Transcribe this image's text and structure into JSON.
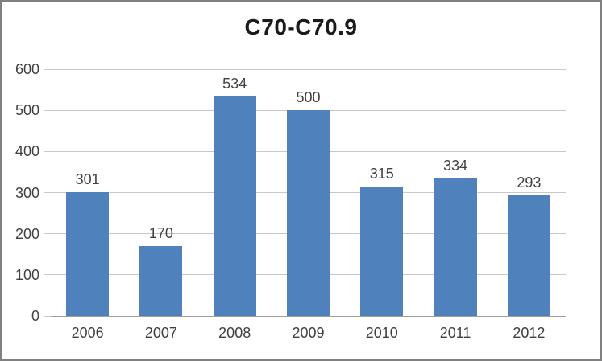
{
  "window": {
    "background": "#FFFFFF",
    "border_color": "#808080"
  },
  "chart_data": {
    "type": "bar",
    "title": "C70-C70.9",
    "categories": [
      "2006",
      "2007",
      "2008",
      "2009",
      "2010",
      "2011",
      "2012"
    ],
    "values": [
      301,
      170,
      534,
      500,
      315,
      334,
      293
    ],
    "xlabel": "",
    "ylabel": "",
    "ylim": [
      0,
      600
    ],
    "yticks": [
      0,
      100,
      200,
      300,
      400,
      500,
      600
    ],
    "grid": "horizontal",
    "legend_position": "none",
    "data_labels": true,
    "colors": {
      "bar": "#4F81BD",
      "gridline": "#C8C8C8",
      "axis_line": "#A3A096",
      "tick_label": "#404040",
      "title": "#1A1A1A",
      "border": "#808080"
    }
  }
}
